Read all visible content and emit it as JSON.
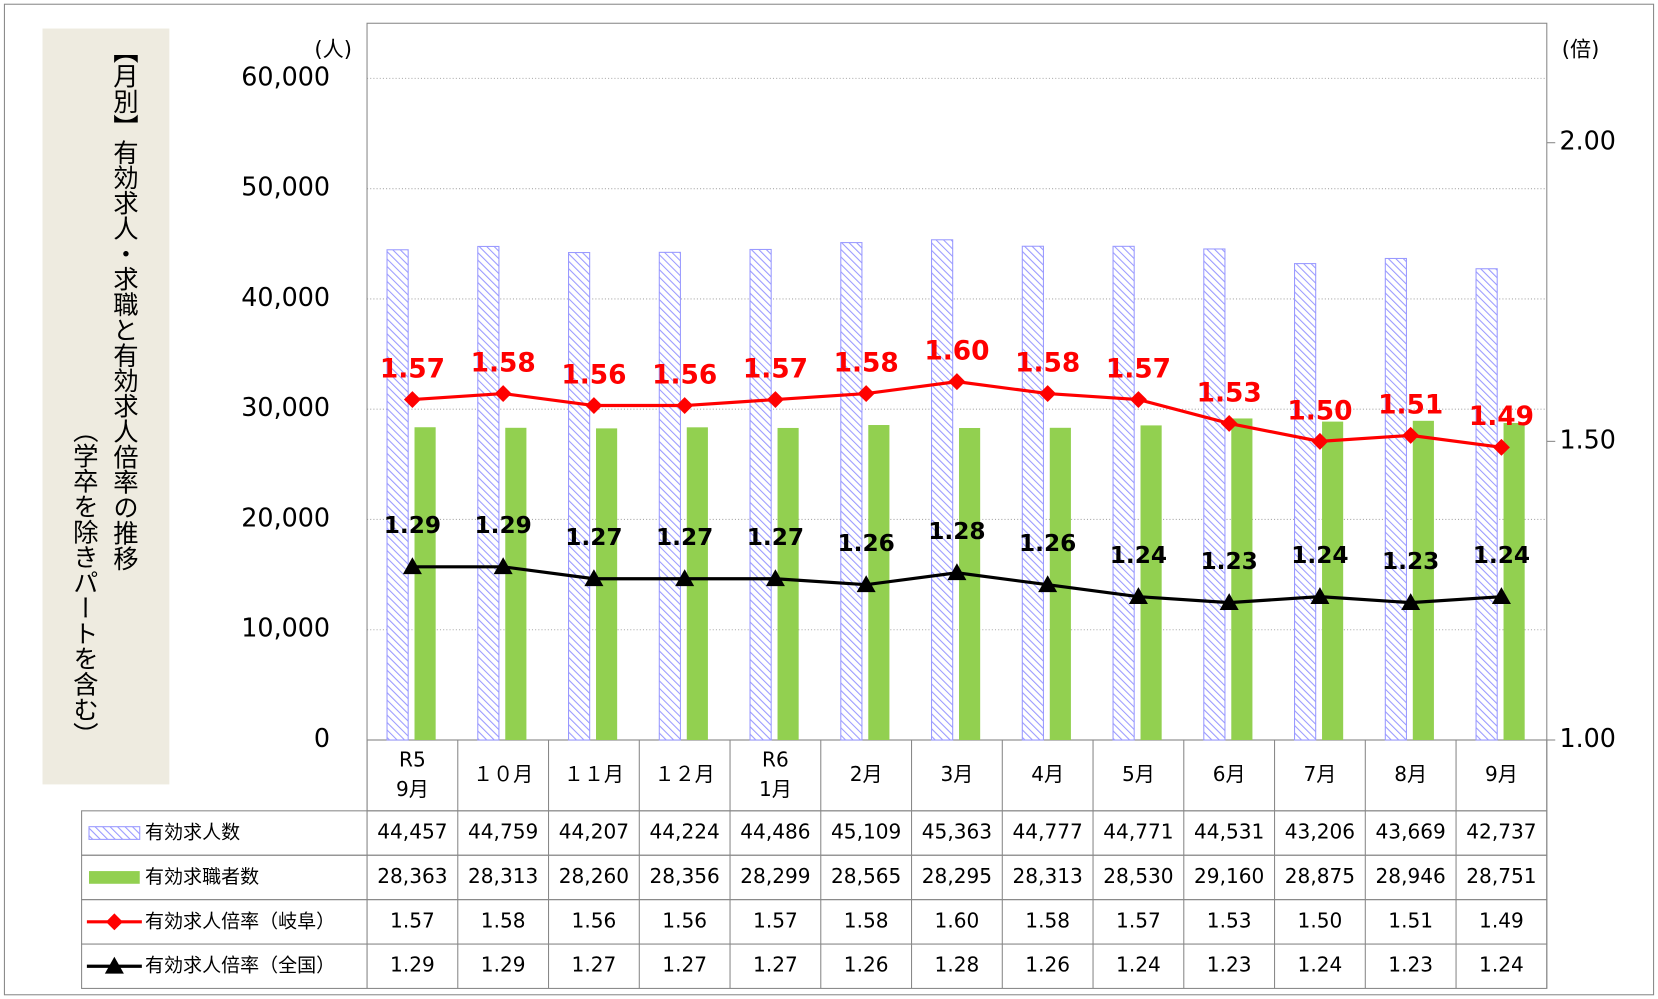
{
  "chart_data": {
    "type": "combo",
    "title": "【月別】有効求人・求職と有効求人倍率の推移",
    "subtitle": "（学卒を除きパートを含む）",
    "y_unit": "(人)",
    "y2_unit": "(倍)",
    "categories": [
      "R5\n9月",
      "１０月",
      "１１月",
      "１２月",
      "R6\n1月",
      "2月",
      "3月",
      "4月",
      "5月",
      "6月",
      "7月",
      "8月",
      "9月"
    ],
    "series": [
      {
        "name": "有効求人数",
        "type": "bar",
        "color": "#9999ff",
        "pattern": "hatch",
        "values": [
          44457,
          44759,
          44207,
          44224,
          44486,
          45109,
          45363,
          44777,
          44771,
          44531,
          43206,
          43669,
          42737
        ],
        "value_labels": [
          "44,457",
          "44,759",
          "44,207",
          "44,224",
          "44,486",
          "45,109",
          "45,363",
          "44,777",
          "44,771",
          "44,531",
          "43,206",
          "43,669",
          "42,737"
        ]
      },
      {
        "name": "有効求職者数",
        "type": "bar",
        "color": "#92d050",
        "values": [
          28363,
          28313,
          28260,
          28356,
          28299,
          28565,
          28295,
          28313,
          28530,
          29160,
          28875,
          28946,
          28751
        ],
        "value_labels": [
          "28,363",
          "28,313",
          "28,260",
          "28,356",
          "28,299",
          "28,565",
          "28,295",
          "28,313",
          "28,530",
          "29,160",
          "28,875",
          "28,946",
          "28,751"
        ]
      },
      {
        "name": "有効求人倍率（岐阜）",
        "type": "line",
        "axis": "y2",
        "color": "#ff0000",
        "marker": "diamond",
        "values": [
          1.57,
          1.58,
          1.56,
          1.56,
          1.57,
          1.58,
          1.6,
          1.58,
          1.57,
          1.53,
          1.5,
          1.51,
          1.49
        ],
        "value_labels": [
          "1.57",
          "1.58",
          "1.56",
          "1.56",
          "1.57",
          "1.58",
          "1.60",
          "1.58",
          "1.57",
          "1.53",
          "1.50",
          "1.51",
          "1.49"
        ]
      },
      {
        "name": "有効求人倍率（全国）",
        "type": "line",
        "axis": "y2",
        "color": "#000000",
        "marker": "triangle",
        "values": [
          1.29,
          1.29,
          1.27,
          1.27,
          1.27,
          1.26,
          1.28,
          1.26,
          1.24,
          1.23,
          1.24,
          1.23,
          1.24
        ],
        "value_labels": [
          "1.29",
          "1.29",
          "1.27",
          "1.27",
          "1.27",
          "1.26",
          "1.28",
          "1.26",
          "1.24",
          "1.23",
          "1.24",
          "1.23",
          "1.24"
        ]
      }
    ],
    "ylim": [
      0,
      65000
    ],
    "yticks": [
      0,
      {
        "value": 10000,
        "label": "10,000"
      },
      {
        "value": 20000,
        "label": "20,000"
      },
      {
        "value": 30000,
        "label": "30,000"
      },
      {
        "value": 40000,
        "label": "40,000"
      },
      {
        "value": 50000,
        "label": "50,000"
      },
      {
        "value": 60000,
        "label": "60,000"
      }
    ],
    "y2lim": [
      1,
      2.2
    ],
    "y2ticks": [
      {
        "value": 1,
        "label": "1.00"
      },
      {
        "value": 1.5,
        "label": "1.50"
      },
      {
        "value": 2,
        "label": "2.00"
      }
    ],
    "grid": true
  }
}
